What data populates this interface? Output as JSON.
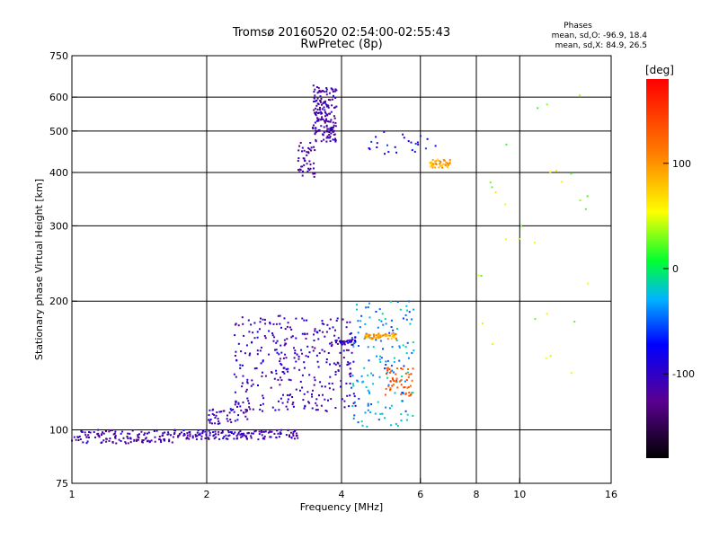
{
  "header": {
    "title_line1": "Tromsø 20160520 02:54:00-02:55:43",
    "title_line2": "RwPretec (8p)"
  },
  "phases_box": {
    "heading": "Phases",
    "line_o": "mean, sd,O: -96.9, 18.4",
    "line_x": "mean, sd,X:  84.9, 26.5"
  },
  "chart_data": {
    "type": "scatter",
    "xlabel": "Frequency [MHz]",
    "ylabel": "Stationary phase Virtual Height [km]",
    "xscale": "log",
    "yscale": "log",
    "xlim": [
      1,
      16
    ],
    "ylim": [
      75,
      750
    ],
    "xticks": [
      1,
      2,
      4,
      6,
      8,
      10,
      16
    ],
    "xtick_labels": [
      "1",
      "2",
      "4",
      "6",
      "8",
      "10",
      "16"
    ],
    "yticks": [
      75,
      100,
      200,
      300,
      400,
      500,
      600,
      750
    ],
    "ytick_labels": [
      "75",
      "100",
      "200",
      "300",
      "400",
      "500",
      "600",
      "750"
    ],
    "grid": true,
    "colorbar": {
      "label": "[deg]",
      "range": [
        -180,
        180
      ],
      "ticks": [
        100,
        0,
        -100
      ],
      "tick_labels": [
        "100",
        "0",
        "-100"
      ]
    },
    "clusters": [
      {
        "f": [
          1.0,
          1.7
        ],
        "h": [
          93,
          100
        ],
        "phase": -115,
        "n": 130
      },
      {
        "f": [
          1.7,
          3.2
        ],
        "h": [
          95,
          100
        ],
        "phase": -110,
        "n": 150
      },
      {
        "f": [
          2.0,
          2.5
        ],
        "h": [
          103,
          112
        ],
        "phase": -110,
        "n": 45
      },
      {
        "f": [
          2.3,
          4.3
        ],
        "h": [
          110,
          185
        ],
        "phase": -105,
        "n": 330
      },
      {
        "f": [
          3.2,
          3.5
        ],
        "h": [
          390,
          470
        ],
        "phase": -115,
        "n": 45
      },
      {
        "f": [
          3.45,
          3.9
        ],
        "h": [
          470,
          640
        ],
        "phase": -115,
        "n": 170
      },
      {
        "f": [
          3.8,
          4.3
        ],
        "h": [
          158,
          162
        ],
        "phase": -110,
        "n": 35
      },
      {
        "f": [
          4.2,
          5.8
        ],
        "h": [
          100,
          200
        ],
        "phase": -35,
        "n": 150
      },
      {
        "f": [
          4.5,
          5.3
        ],
        "h": [
          163,
          168
        ],
        "phase": 95,
        "n": 60
      },
      {
        "f": [
          5.0,
          5.8
        ],
        "h": [
          120,
          140
        ],
        "phase": 130,
        "n": 50
      },
      {
        "f": [
          4.6,
          6.6
        ],
        "h": [
          440,
          500
        ],
        "phase": -80,
        "n": 25
      },
      {
        "f": [
          6.3,
          7.0
        ],
        "h": [
          410,
          430
        ],
        "phase": 90,
        "n": 45
      },
      {
        "f": [
          8.0,
          14.5
        ],
        "h": [
          130,
          680
        ],
        "phase": 40,
        "n": 30
      }
    ]
  }
}
